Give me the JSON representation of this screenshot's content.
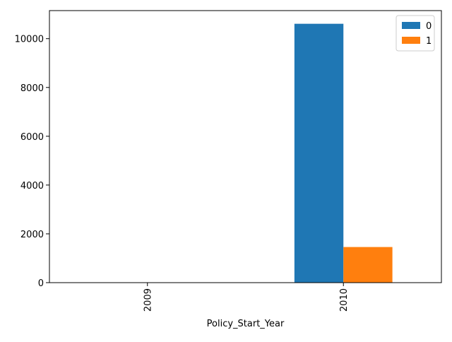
{
  "chart_data": {
    "type": "bar",
    "title": "",
    "xlabel": "Policy_Start_Year",
    "ylabel": "",
    "categories": [
      "2009",
      "2010"
    ],
    "series": [
      {
        "name": "0",
        "values": [
          0,
          10610
        ],
        "color": "#1f77b4"
      },
      {
        "name": "1",
        "values": [
          0,
          1460
        ],
        "color": "#ff7f0e"
      }
    ],
    "ylim": [
      0,
      11150
    ],
    "yticks": [
      0,
      2000,
      4000,
      6000,
      8000,
      10000
    ],
    "grid": false,
    "legend": "top-right",
    "xtick_rotation": "vertical"
  }
}
